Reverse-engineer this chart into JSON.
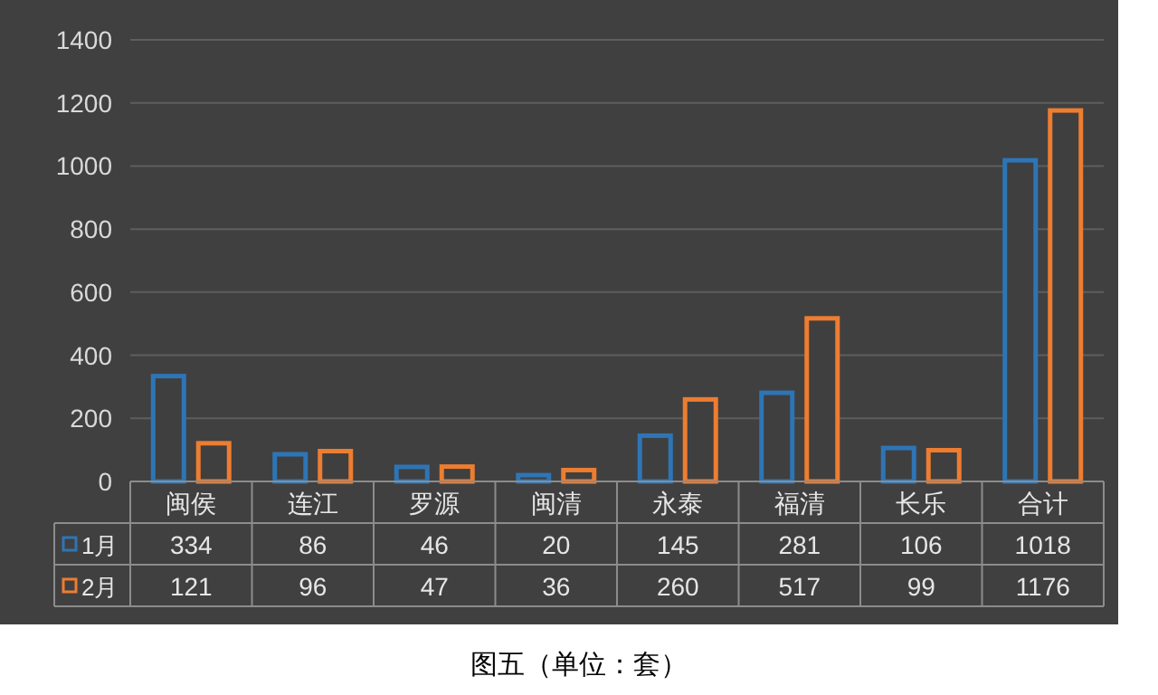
{
  "chart_data": {
    "type": "bar",
    "categories": [
      "闽侯",
      "连江",
      "罗源",
      "闽清",
      "永泰",
      "福清",
      "长乐",
      "合计"
    ],
    "series": [
      {
        "name": "1月",
        "color": "#2e75b6",
        "values": [
          334,
          86,
          46,
          20,
          145,
          281,
          106,
          1018
        ]
      },
      {
        "name": "2月",
        "color": "#ed7d31",
        "values": [
          121,
          96,
          47,
          36,
          260,
          517,
          99,
          1176
        ]
      }
    ],
    "ylim": [
      0,
      1400
    ],
    "yticks": [
      0,
      200,
      400,
      600,
      800,
      1000,
      1200,
      1400
    ],
    "grid": "y",
    "legend": "bottom left",
    "data_labels": true,
    "annotations": [
      "图五（单位：套）"
    ]
  }
}
